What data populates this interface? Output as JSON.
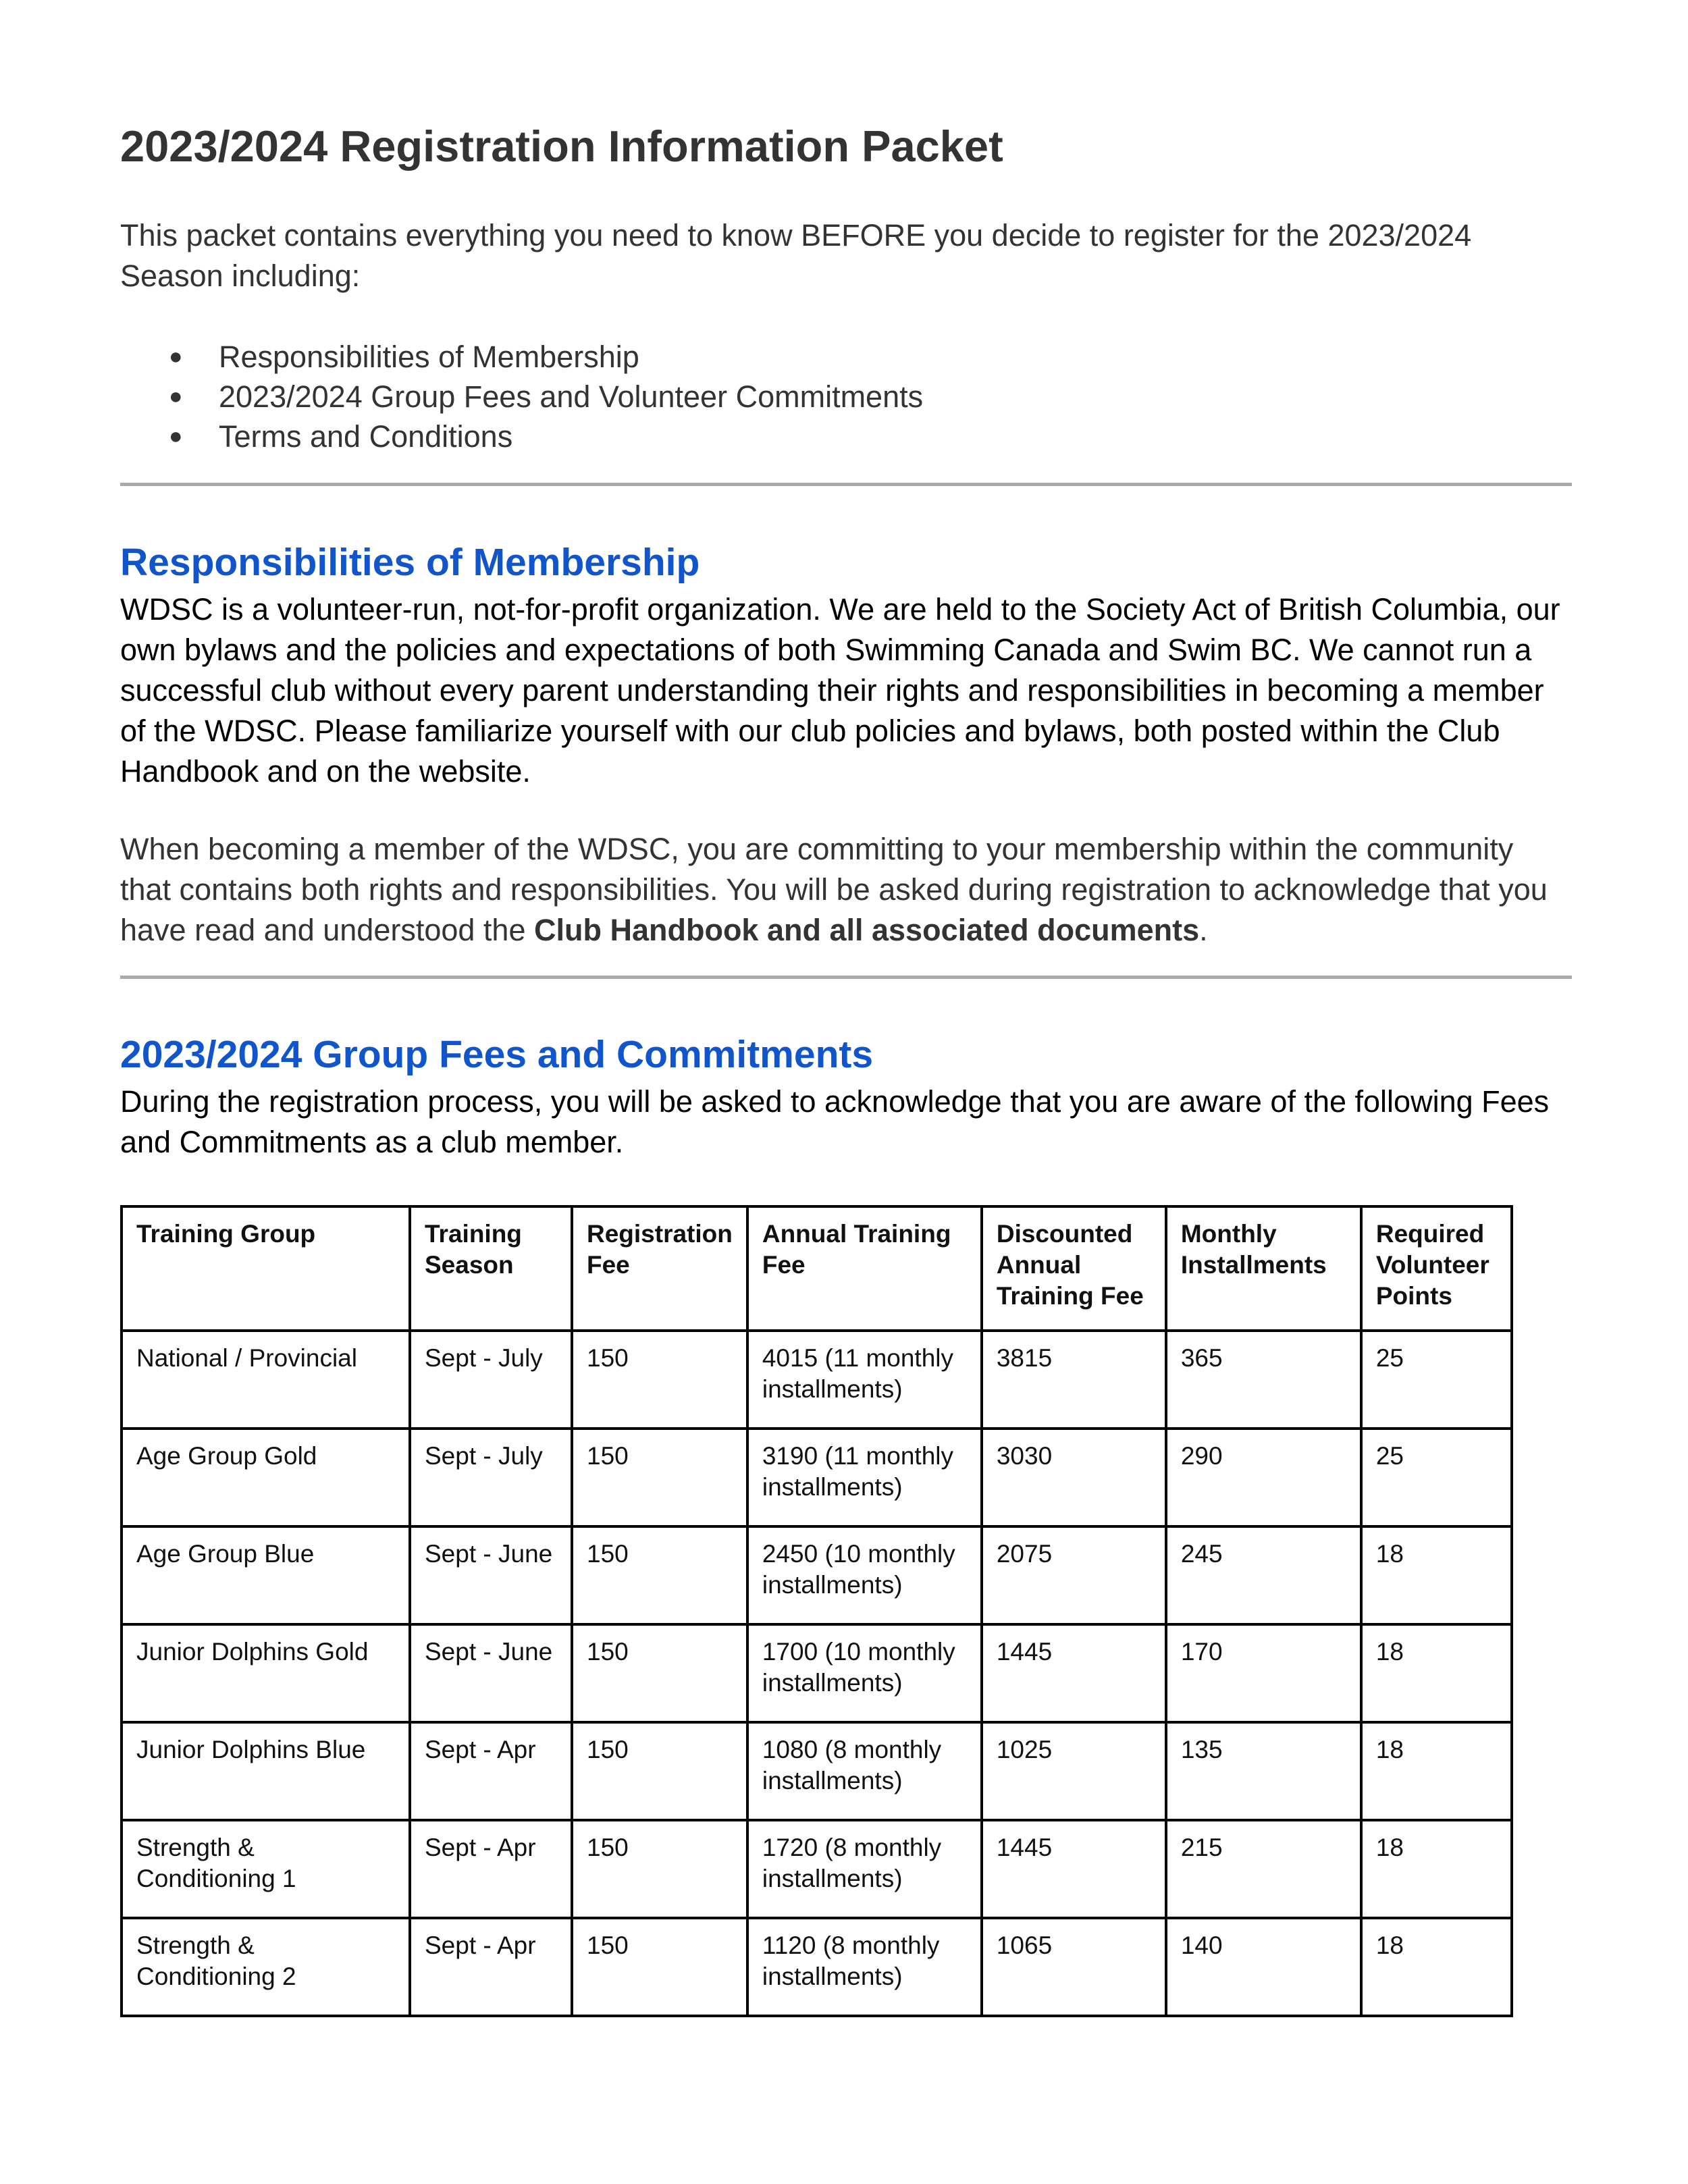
{
  "title": "2023/2024 Registration Information Packet",
  "intro": "This packet contains everything you need to know BEFORE you decide to register for the 2023/2024 Season including:",
  "bullets": [
    "Responsibilities of Membership",
    "2023/2024 Group Fees and Volunteer Commitments",
    "Terms and Conditions"
  ],
  "responsibilities": {
    "heading": "Responsibilities of Membership",
    "para1": "WDSC is a volunteer-run, not-for-profit organization. We are held to the Society Act of British Columbia, our own bylaws and the policies and expectations of both Swimming Canada and Swim BC. We cannot run a successful club without every parent understanding their rights and responsibilities in becoming a member of the WDSC. Please familiarize yourself with our club policies and bylaws, both posted within the Club Handbook and on the website.",
    "para2_start": "When becoming a member of the WDSC, you are committing to your membership within the community that contains both rights and responsibilities. You will be asked during registration to acknowledge that you have read and understood the ",
    "para2_bold": "Club Handbook and all associated documents",
    "para2_end": "."
  },
  "fees": {
    "heading": "2023/2024 Group Fees and Commitments",
    "para": "During the registration process, you will be asked to acknowledge that you are aware of the following Fees and Commitments as a club member.",
    "columns": [
      "Training Group",
      "Training Season",
      "Registration Fee",
      "Annual Training Fee",
      "Discounted Annual Training Fee",
      "Monthly Installments",
      "Required Volunteer Points"
    ],
    "rows": [
      [
        "National / Provincial",
        "Sept - July",
        "150",
        "4015 (11 monthly installments)",
        "3815",
        "365",
        "25"
      ],
      [
        "Age Group Gold",
        "Sept - July",
        "150",
        "3190 (11 monthly installments)",
        "3030",
        "290",
        "25"
      ],
      [
        "Age Group Blue",
        "Sept - June",
        "150",
        "2450 (10 monthly installments)",
        "2075",
        "245",
        "18"
      ],
      [
        "Junior Dolphins Gold",
        "Sept - June",
        "150",
        "1700 (10 monthly installments)",
        "1445",
        "170",
        "18"
      ],
      [
        "Junior Dolphins Blue",
        "Sept - Apr",
        "150",
        "1080 (8 monthly installments)",
        "1025",
        "135",
        "18"
      ],
      [
        "Strength & Conditioning 1",
        "Sept - Apr",
        "150",
        "1720 (8 monthly installments)",
        "1445",
        "215",
        "18"
      ],
      [
        "Strength & Conditioning 2",
        "Sept - Apr",
        "150",
        "1120 (8 monthly installments)",
        "1065",
        "140",
        "18"
      ]
    ]
  },
  "colors": {
    "heading": "#1155cc",
    "rule": "#aaaaaa"
  }
}
